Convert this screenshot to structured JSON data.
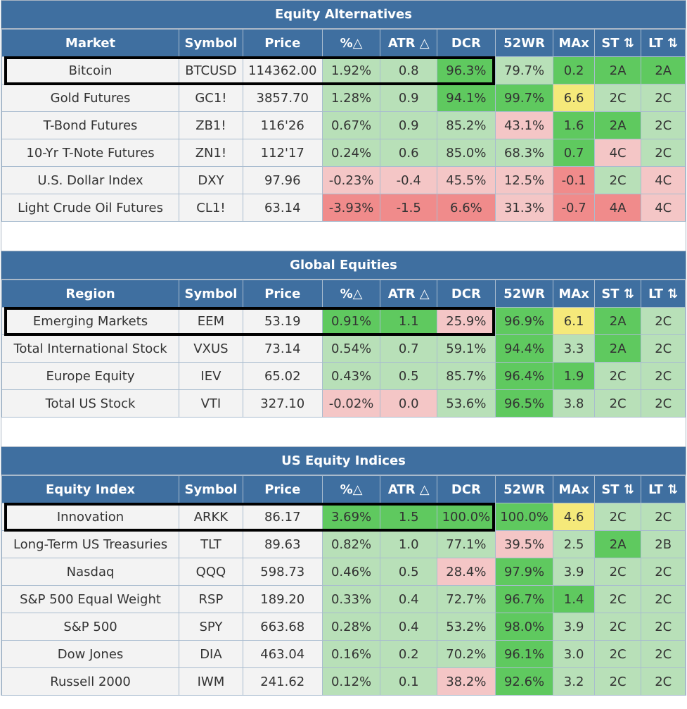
{
  "sections": [
    {
      "title": "Equity Alternatives",
      "headers": [
        "Market",
        "Symbol",
        "Price",
        "%△",
        "ATR △",
        "DCR",
        "52WR",
        "MAx",
        "ST ⇅",
        "LT ⇅"
      ],
      "rows": [
        {
          "cells": [
            "Bitcoin",
            "BTCUSD",
            "114362.00",
            "1.92%",
            "0.8",
            "96.3%",
            "79.7%",
            "0.2",
            "2A",
            "2A"
          ],
          "colors": [
            "",
            "",
            "",
            "g1",
            "g1",
            "g2",
            "g1",
            "g2",
            "g2",
            "g2"
          ]
        },
        {
          "cells": [
            "Gold Futures",
            "GC1!",
            "3857.70",
            "1.28%",
            "0.9",
            "94.1%",
            "99.7%",
            "6.6",
            "2C",
            "2C"
          ],
          "colors": [
            "",
            "",
            "",
            "g1",
            "g1",
            "g2",
            "g2",
            "y1",
            "g1",
            "g1"
          ]
        },
        {
          "cells": [
            "T-Bond Futures",
            "ZB1!",
            "116'26",
            "0.67%",
            "0.9",
            "85.2%",
            "43.1%",
            "1.6",
            "2A",
            "2C"
          ],
          "colors": [
            "",
            "",
            "",
            "g1",
            "g1",
            "g1",
            "r1",
            "g2",
            "g2",
            "g1"
          ]
        },
        {
          "cells": [
            "10-Yr T-Note Futures",
            "ZN1!",
            "112'17",
            "0.24%",
            "0.6",
            "85.0%",
            "68.3%",
            "0.7",
            "4C",
            "2C"
          ],
          "colors": [
            "",
            "",
            "",
            "g1",
            "g1",
            "g1",
            "g1",
            "g2",
            "r1",
            "g1"
          ]
        },
        {
          "cells": [
            "U.S. Dollar Index",
            "DXY",
            "97.96",
            "-0.23%",
            "-0.4",
            "45.5%",
            "12.5%",
            "-0.1",
            "2C",
            "4C"
          ],
          "colors": [
            "",
            "",
            "",
            "r1",
            "r1",
            "r1",
            "r1",
            "r2",
            "g1",
            "r1"
          ]
        },
        {
          "cells": [
            "Light Crude Oil Futures",
            "CL1!",
            "63.14",
            "-3.93%",
            "-1.5",
            "6.6%",
            "31.3%",
            "-0.7",
            "4A",
            "4C"
          ],
          "colors": [
            "",
            "",
            "",
            "r2",
            "r2",
            "r2",
            "r1",
            "r2",
            "r2",
            "r1"
          ]
        }
      ]
    },
    {
      "title": "Global Equities",
      "headers": [
        "Region",
        "Symbol",
        "Price",
        "%△",
        "ATR △",
        "DCR",
        "52WR",
        "MAx",
        "ST ⇅",
        "LT ⇅"
      ],
      "rows": [
        {
          "cells": [
            "Emerging Markets",
            "EEM",
            "53.19",
            "0.91%",
            "1.1",
            "25.9%",
            "96.9%",
            "6.1",
            "2A",
            "2C"
          ],
          "colors": [
            "",
            "",
            "",
            "g2",
            "g2",
            "r1",
            "g2",
            "y1",
            "g2",
            "g1"
          ]
        },
        {
          "cells": [
            "Total International Stock",
            "VXUS",
            "73.14",
            "0.54%",
            "0.7",
            "59.1%",
            "94.4%",
            "3.3",
            "2A",
            "2C"
          ],
          "colors": [
            "",
            "",
            "",
            "g1",
            "g1",
            "g1",
            "g2",
            "g1",
            "g2",
            "g1"
          ]
        },
        {
          "cells": [
            "Europe Equity",
            "IEV",
            "65.02",
            "0.43%",
            "0.5",
            "85.7%",
            "96.4%",
            "1.9",
            "2C",
            "2C"
          ],
          "colors": [
            "",
            "",
            "",
            "g1",
            "g1",
            "g1",
            "g2",
            "g2",
            "g1",
            "g1"
          ]
        },
        {
          "cells": [
            "Total US Stock",
            "VTI",
            "327.10",
            "-0.02%",
            "0.0",
            "53.6%",
            "96.5%",
            "3.8",
            "2C",
            "2C"
          ],
          "colors": [
            "",
            "",
            "",
            "r1",
            "r1",
            "g1",
            "g2",
            "g1",
            "g1",
            "g1"
          ]
        }
      ]
    },
    {
      "title": "US Equity Indices",
      "headers": [
        "Equity Index",
        "Symbol",
        "Price",
        "%△",
        "ATR △",
        "DCR",
        "52WR",
        "MAx",
        "ST ⇅",
        "LT ⇅"
      ],
      "rows": [
        {
          "cells": [
            "Innovation",
            "ARKK",
            "86.17",
            "3.69%",
            "1.5",
            "100.0%",
            "100.0%",
            "4.6",
            "2C",
            "2C"
          ],
          "colors": [
            "",
            "",
            "",
            "g2",
            "g2",
            "g2",
            "g2",
            "y1",
            "g1",
            "g1"
          ]
        },
        {
          "cells": [
            "Long-Term US Treasuries",
            "TLT",
            "89.63",
            "0.82%",
            "1.0",
            "77.1%",
            "39.5%",
            "2.5",
            "2A",
            "2B"
          ],
          "colors": [
            "",
            "",
            "",
            "g1",
            "g1",
            "g1",
            "r1",
            "g1",
            "g2",
            "g1"
          ]
        },
        {
          "cells": [
            "Nasdaq",
            "QQQ",
            "598.73",
            "0.46%",
            "0.5",
            "28.4%",
            "97.9%",
            "3.9",
            "2C",
            "2C"
          ],
          "colors": [
            "",
            "",
            "",
            "g1",
            "g1",
            "r1",
            "g2",
            "g1",
            "g1",
            "g1"
          ]
        },
        {
          "cells": [
            "S&P 500 Equal Weight",
            "RSP",
            "189.20",
            "0.33%",
            "0.4",
            "72.7%",
            "96.7%",
            "1.4",
            "2C",
            "2C"
          ],
          "colors": [
            "",
            "",
            "",
            "g1",
            "g1",
            "g1",
            "g2",
            "g2",
            "g1",
            "g1"
          ]
        },
        {
          "cells": [
            "S&P 500",
            "SPY",
            "663.68",
            "0.28%",
            "0.4",
            "53.2%",
            "98.0%",
            "3.9",
            "2C",
            "2C"
          ],
          "colors": [
            "",
            "",
            "",
            "g1",
            "g1",
            "g1",
            "g2",
            "g1",
            "g1",
            "g1"
          ]
        },
        {
          "cells": [
            "Dow Jones",
            "DIA",
            "463.04",
            "0.16%",
            "0.2",
            "70.2%",
            "96.1%",
            "3.0",
            "2C",
            "2C"
          ],
          "colors": [
            "",
            "",
            "",
            "g1",
            "g1",
            "g1",
            "g2",
            "g1",
            "g1",
            "g1"
          ]
        },
        {
          "cells": [
            "Russell 2000",
            "IWM",
            "241.62",
            "0.12%",
            "0.1",
            "38.2%",
            "92.6%",
            "3.2",
            "2C",
            "2C"
          ],
          "colors": [
            "",
            "",
            "",
            "g1",
            "g1",
            "r1",
            "g2",
            "g1",
            "g1",
            "g1"
          ]
        }
      ]
    }
  ],
  "highlighted_rows": [
    "Bitcoin",
    "Emerging Markets",
    "Innovation"
  ]
}
